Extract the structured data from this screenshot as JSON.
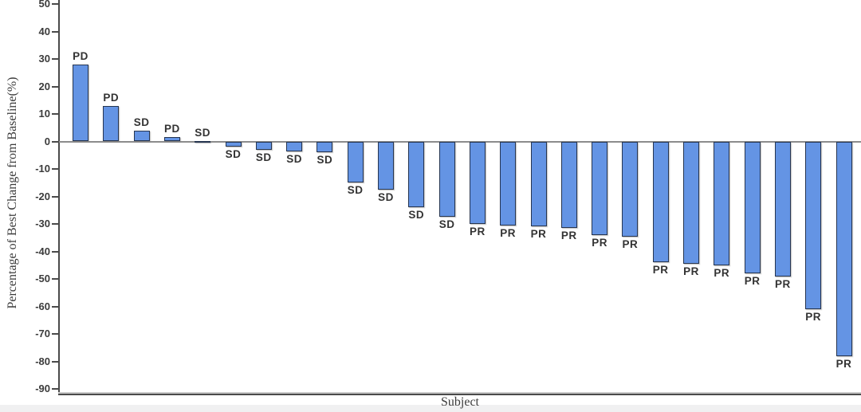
{
  "chart_data": {
    "type": "bar",
    "subtype": "waterfall",
    "title": "",
    "xlabel": "Subject",
    "ylabel": "Percentage of Best Change from Baseline(%)",
    "ylim": [
      -90,
      50
    ],
    "ytick_interval": 10,
    "yticks": [
      50,
      40,
      30,
      20,
      10,
      0,
      -10,
      -20,
      -30,
      -40,
      -50,
      -60,
      -70,
      -80,
      -90
    ],
    "grid": false,
    "legend": "none",
    "bar_color": "#6494e4",
    "bar_border_color": "#263550",
    "bars": [
      {
        "label": "PD",
        "value": 28
      },
      {
        "label": "PD",
        "value": 13
      },
      {
        "label": "SD",
        "value": 3.8
      },
      {
        "label": "PD",
        "value": 1.5
      },
      {
        "label": "SD",
        "value": 0.2
      },
      {
        "label": "SD",
        "value": -2
      },
      {
        "label": "SD",
        "value": -3
      },
      {
        "label": "SD",
        "value": -3.5
      },
      {
        "label": "SD",
        "value": -4
      },
      {
        "label": "SD",
        "value": -15
      },
      {
        "label": "SD",
        "value": -17.5
      },
      {
        "label": "SD",
        "value": -24
      },
      {
        "label": "SD",
        "value": -27.5
      },
      {
        "label": "PR",
        "value": -30
      },
      {
        "label": "PR",
        "value": -30.5
      },
      {
        "label": "PR",
        "value": -31
      },
      {
        "label": "PR",
        "value": -31.5
      },
      {
        "label": "PR",
        "value": -34
      },
      {
        "label": "PR",
        "value": -34.5
      },
      {
        "label": "PR",
        "value": -44
      },
      {
        "label": "PR",
        "value": -44.5
      },
      {
        "label": "PR",
        "value": -45
      },
      {
        "label": "PR",
        "value": -48
      },
      {
        "label": "PR",
        "value": -49
      },
      {
        "label": "PR",
        "value": -61
      },
      {
        "label": "PR",
        "value": -78
      }
    ]
  }
}
